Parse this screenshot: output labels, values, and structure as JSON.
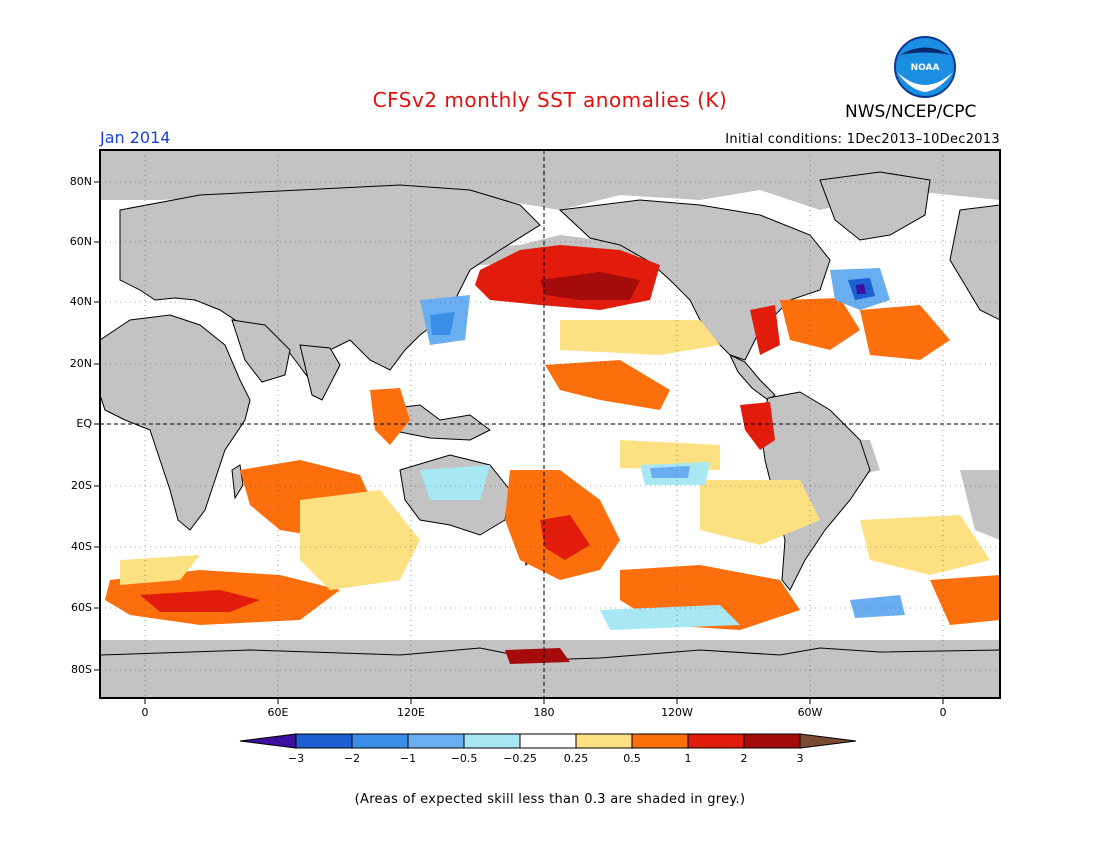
{
  "title": "CFSv2 monthly SST anomalies (K)",
  "organization": "NWS/NCEP/CPC",
  "logo_text": "NOAA",
  "month_label": "Jan 2014",
  "initial_conditions": "Initial conditions: 1Dec2013–10Dec2013",
  "lat_labels": [
    "80N",
    "60N",
    "40N",
    "20N",
    "EQ",
    "20S",
    "40S",
    "60S",
    "80S"
  ],
  "lon_labels": [
    "0",
    "60E",
    "120E",
    "180",
    "120W",
    "60W",
    "0"
  ],
  "colorbar": {
    "ticks": [
      "−3",
      "−2",
      "−1",
      "−0.5",
      "−0.25",
      "0.25",
      "0.5",
      "1",
      "2",
      "3"
    ],
    "colors": [
      "#3d0fa0",
      "#1c5fd0",
      "#3a8ee8",
      "#6aaef2",
      "#a8e8f4",
      "#ffffff",
      "#fce082",
      "#fd6f0d",
      "#e11c0c",
      "#a50b0b",
      "#7a4a35"
    ]
  },
  "land_color": "#c3c3c3",
  "footnote": "(Areas of expected skill less than 0.3 are shaded in grey.)"
}
